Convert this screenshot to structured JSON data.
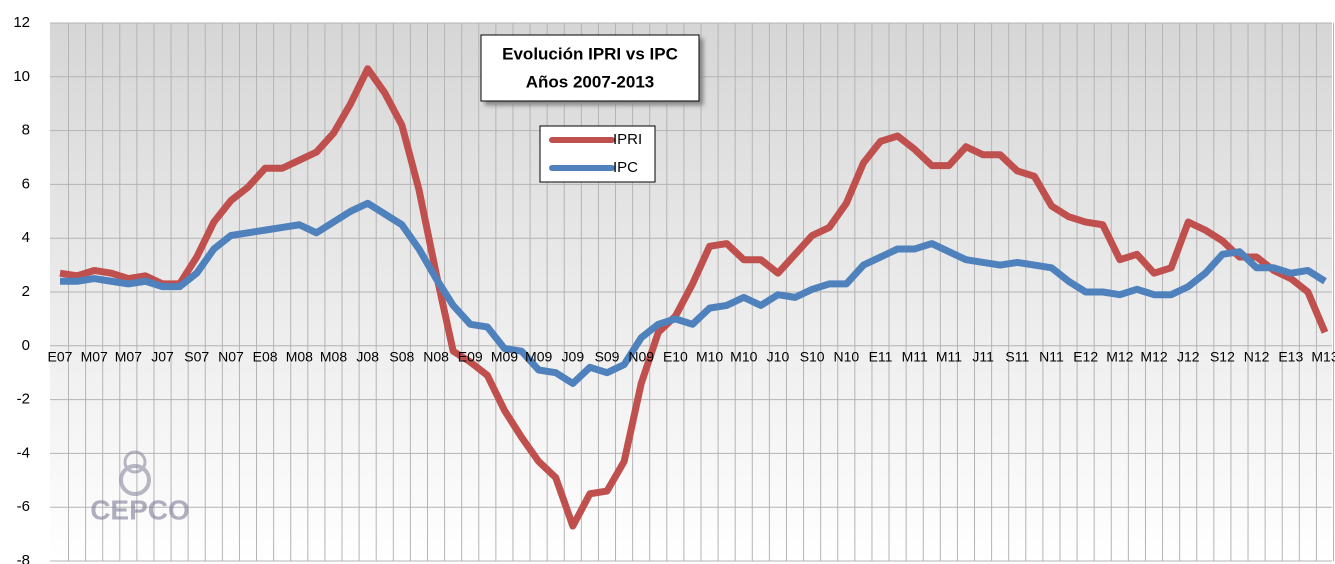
{
  "chart_data": {
    "type": "line",
    "title": "Evolución IPRI vs IPC",
    "subtitle": "Años 2007-2013",
    "watermark": "CEPCO",
    "categories": [
      "E07",
      null,
      "M07",
      null,
      "M07",
      null,
      "J07",
      null,
      "S07",
      null,
      "N07",
      null,
      "E08",
      null,
      "M08",
      null,
      "M08",
      null,
      "J08",
      null,
      "S08",
      null,
      "N08",
      null,
      "E09",
      null,
      "M09",
      null,
      "M09",
      null,
      "J09",
      null,
      "S09",
      null,
      "N09",
      null,
      "E10",
      null,
      "M10",
      null,
      "M10",
      null,
      "J10",
      null,
      "S10",
      null,
      "N10",
      null,
      "E11",
      null,
      "M11",
      null,
      "M11",
      null,
      "J11",
      null,
      "S11",
      null,
      "N11",
      null,
      "E12",
      null,
      "M12",
      null,
      "M12",
      null,
      "J12",
      null,
      "S12",
      null,
      "N12",
      null,
      "E13",
      null,
      "M13"
    ],
    "series": [
      {
        "name": "IPRI",
        "color": "#c0504d",
        "values": [
          2.7,
          2.6,
          2.8,
          2.7,
          2.5,
          2.6,
          2.3,
          2.3,
          3.3,
          4.6,
          5.4,
          5.9,
          6.6,
          6.6,
          6.9,
          7.2,
          7.9,
          9.0,
          10.3,
          9.4,
          8.2,
          5.8,
          2.7,
          -0.2,
          -0.6,
          -1.1,
          -2.4,
          -3.4,
          -4.3,
          -4.9,
          -6.7,
          -5.5,
          -5.4,
          -4.3,
          -1.4,
          0.5,
          1.1,
          2.3,
          3.7,
          3.8,
          3.2,
          3.2,
          2.7,
          3.4,
          4.1,
          4.4,
          5.3,
          6.8,
          7.6,
          7.8,
          7.3,
          6.7,
          6.7,
          7.4,
          7.1,
          7.1,
          6.5,
          6.3,
          5.2,
          4.8,
          4.6,
          4.5,
          3.2,
          3.4,
          2.7,
          2.9,
          4.6,
          4.3,
          3.9,
          3.3,
          3.3,
          2.8,
          2.5,
          2.0,
          0.5
        ]
      },
      {
        "name": "IPC",
        "color": "#4f81bd",
        "values": [
          2.4,
          2.4,
          2.5,
          2.4,
          2.3,
          2.4,
          2.2,
          2.2,
          2.7,
          3.6,
          4.1,
          4.2,
          4.3,
          4.4,
          4.5,
          4.2,
          4.6,
          5.0,
          5.3,
          4.9,
          4.5,
          3.6,
          2.5,
          1.5,
          0.8,
          0.7,
          -0.1,
          -0.2,
          -0.9,
          -1.0,
          -1.4,
          -0.8,
          -1.0,
          -0.7,
          0.3,
          0.8,
          1.0,
          0.8,
          1.4,
          1.5,
          1.8,
          1.5,
          1.9,
          1.8,
          2.1,
          2.3,
          2.3,
          3.0,
          3.3,
          3.6,
          3.6,
          3.8,
          3.5,
          3.2,
          3.1,
          3.0,
          3.1,
          3.0,
          2.9,
          2.4,
          2.0,
          2.0,
          1.9,
          2.1,
          1.9,
          1.9,
          2.2,
          2.7,
          3.4,
          3.5,
          2.9,
          2.9,
          2.7,
          2.8,
          2.4
        ]
      }
    ],
    "ylim": [
      -8,
      12
    ],
    "yticks": [
      -8,
      -6,
      -4,
      -2,
      0,
      2,
      4,
      6,
      8,
      10,
      12
    ],
    "grid": true
  }
}
